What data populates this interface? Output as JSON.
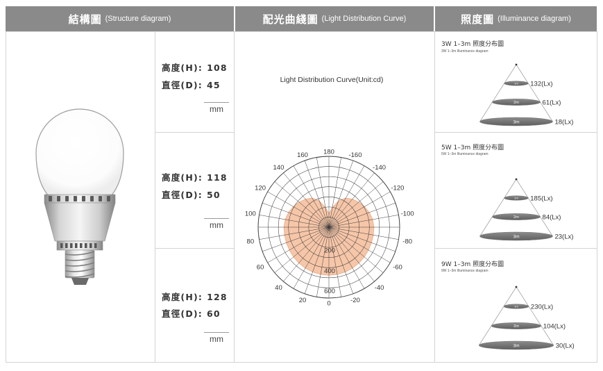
{
  "header": {
    "structure": {
      "zh": "結構圖",
      "en": "(Structure diagram)"
    },
    "curve": {
      "zh": "配光曲綫圖",
      "en": "(Light Distribution Curve)"
    },
    "illuminance": {
      "zh": "照度圖",
      "en": "(Illuminance diagram)"
    }
  },
  "structure": {
    "illustration": "led-bulb-illustration"
  },
  "specs": [
    {
      "height_label": "高度(H):",
      "height": "108",
      "diameter_label": "直徑(D):",
      "diameter": "45",
      "unit": "mm"
    },
    {
      "height_label": "高度(H):",
      "height": "118",
      "diameter_label": "直徑(D):",
      "diameter": "50",
      "unit": "mm"
    },
    {
      "height_label": "高度(H):",
      "height": "128",
      "diameter_label": "直徑(D):",
      "diameter": "60",
      "unit": "mm"
    }
  ],
  "chart_data": {
    "type": "area",
    "coordinates": "polar",
    "title": "Light Distribution Curve(Unit:cd)",
    "zero_location": "bottom",
    "direction": "clockwise",
    "grid": true,
    "angle_ticks": [
      180,
      160,
      140,
      120,
      100,
      80,
      60,
      40,
      20,
      0,
      -20,
      -40,
      -60,
      -80,
      -100,
      -120,
      -140,
      -160
    ],
    "angle_grid_step": 10,
    "radial_ticks": [
      200,
      400,
      600
    ],
    "radial_grid_step": 100,
    "rlim": [
      0,
      700
    ],
    "series": [
      {
        "angles": [
          -180,
          -170,
          -160,
          -150,
          -140,
          -130,
          -120,
          -110,
          -100,
          -90,
          -80,
          -70,
          -60,
          -50,
          -40,
          -30,
          -20,
          -10,
          0,
          10,
          20,
          30,
          40,
          50,
          60,
          70,
          80,
          90,
          100,
          110,
          120,
          130,
          140,
          150,
          160,
          170,
          180
        ],
        "values": [
          135,
          197,
          275,
          333,
          362,
          385,
          406,
          425,
          439,
          445,
          446,
          448,
          452,
          457,
          462,
          467,
          471,
          474,
          475,
          474,
          471,
          467,
          462,
          457,
          452,
          448,
          446,
          445,
          439,
          425,
          406,
          385,
          362,
          333,
          275,
          197,
          135
        ]
      }
    ]
  },
  "illuminance": [
    {
      "title": "3W 1–3m 照度分布圖",
      "subtitle": "3W 1–3m Illuminance diagram",
      "levels": [
        {
          "distance": "1m",
          "lux": "132(Lx)"
        },
        {
          "distance": "2m",
          "lux": "61(Lx)"
        },
        {
          "distance": "3m",
          "lux": "18(Lx)"
        }
      ]
    },
    {
      "title": "5W 1–3m 照度分布圖",
      "subtitle": "5W 1–3m Illuminance diagram",
      "levels": [
        {
          "distance": "1m",
          "lux": "185(Lx)"
        },
        {
          "distance": "2m",
          "lux": "84(Lx)"
        },
        {
          "distance": "3m",
          "lux": "23(Lx)"
        }
      ]
    },
    {
      "title": "9W 1–3m 照度分布圖",
      "subtitle": "9W 1–3m Illuminance diagram",
      "levels": [
        {
          "distance": "1m",
          "lux": "230(Lx)"
        },
        {
          "distance": "2m",
          "lux": "104(Lx)"
        },
        {
          "distance": "3m",
          "lux": "30(Lx)"
        }
      ]
    }
  ],
  "colors": {
    "header_bg": "#8a8a8a",
    "distribution_fill": "#f6c6a8",
    "distribution_stroke": "#eaa883",
    "grid": "#3a3a3a",
    "ellipse_dark": "#5e5e5e",
    "ellipse_light": "#8c8c8c"
  }
}
